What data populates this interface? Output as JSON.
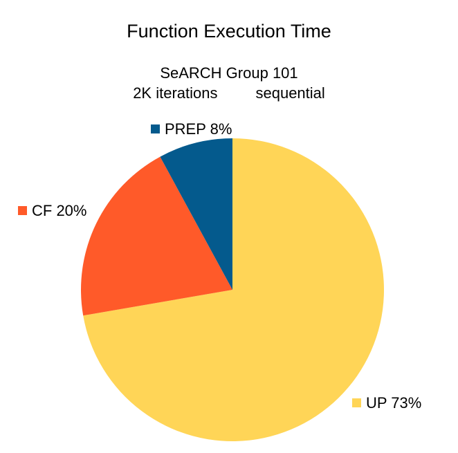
{
  "chart_data": {
    "type": "pie",
    "title": "Function Execution Time",
    "subtitle_lines": [
      "SeARCH Group 101",
      "2K iterations         sequential"
    ],
    "slices": [
      {
        "name": "UP",
        "percent": 73,
        "label": "UP 73%",
        "color": "#ffd557"
      },
      {
        "name": "CF",
        "percent": 20,
        "label": "CF 20%",
        "color": "#ff5a29"
      },
      {
        "name": "PREP",
        "percent": 8,
        "label": "PREP 8%",
        "color": "#045a8d"
      }
    ],
    "start_angle": "12 o'clock",
    "direction": "clockwise",
    "legend_placement": "labels beside slices"
  }
}
